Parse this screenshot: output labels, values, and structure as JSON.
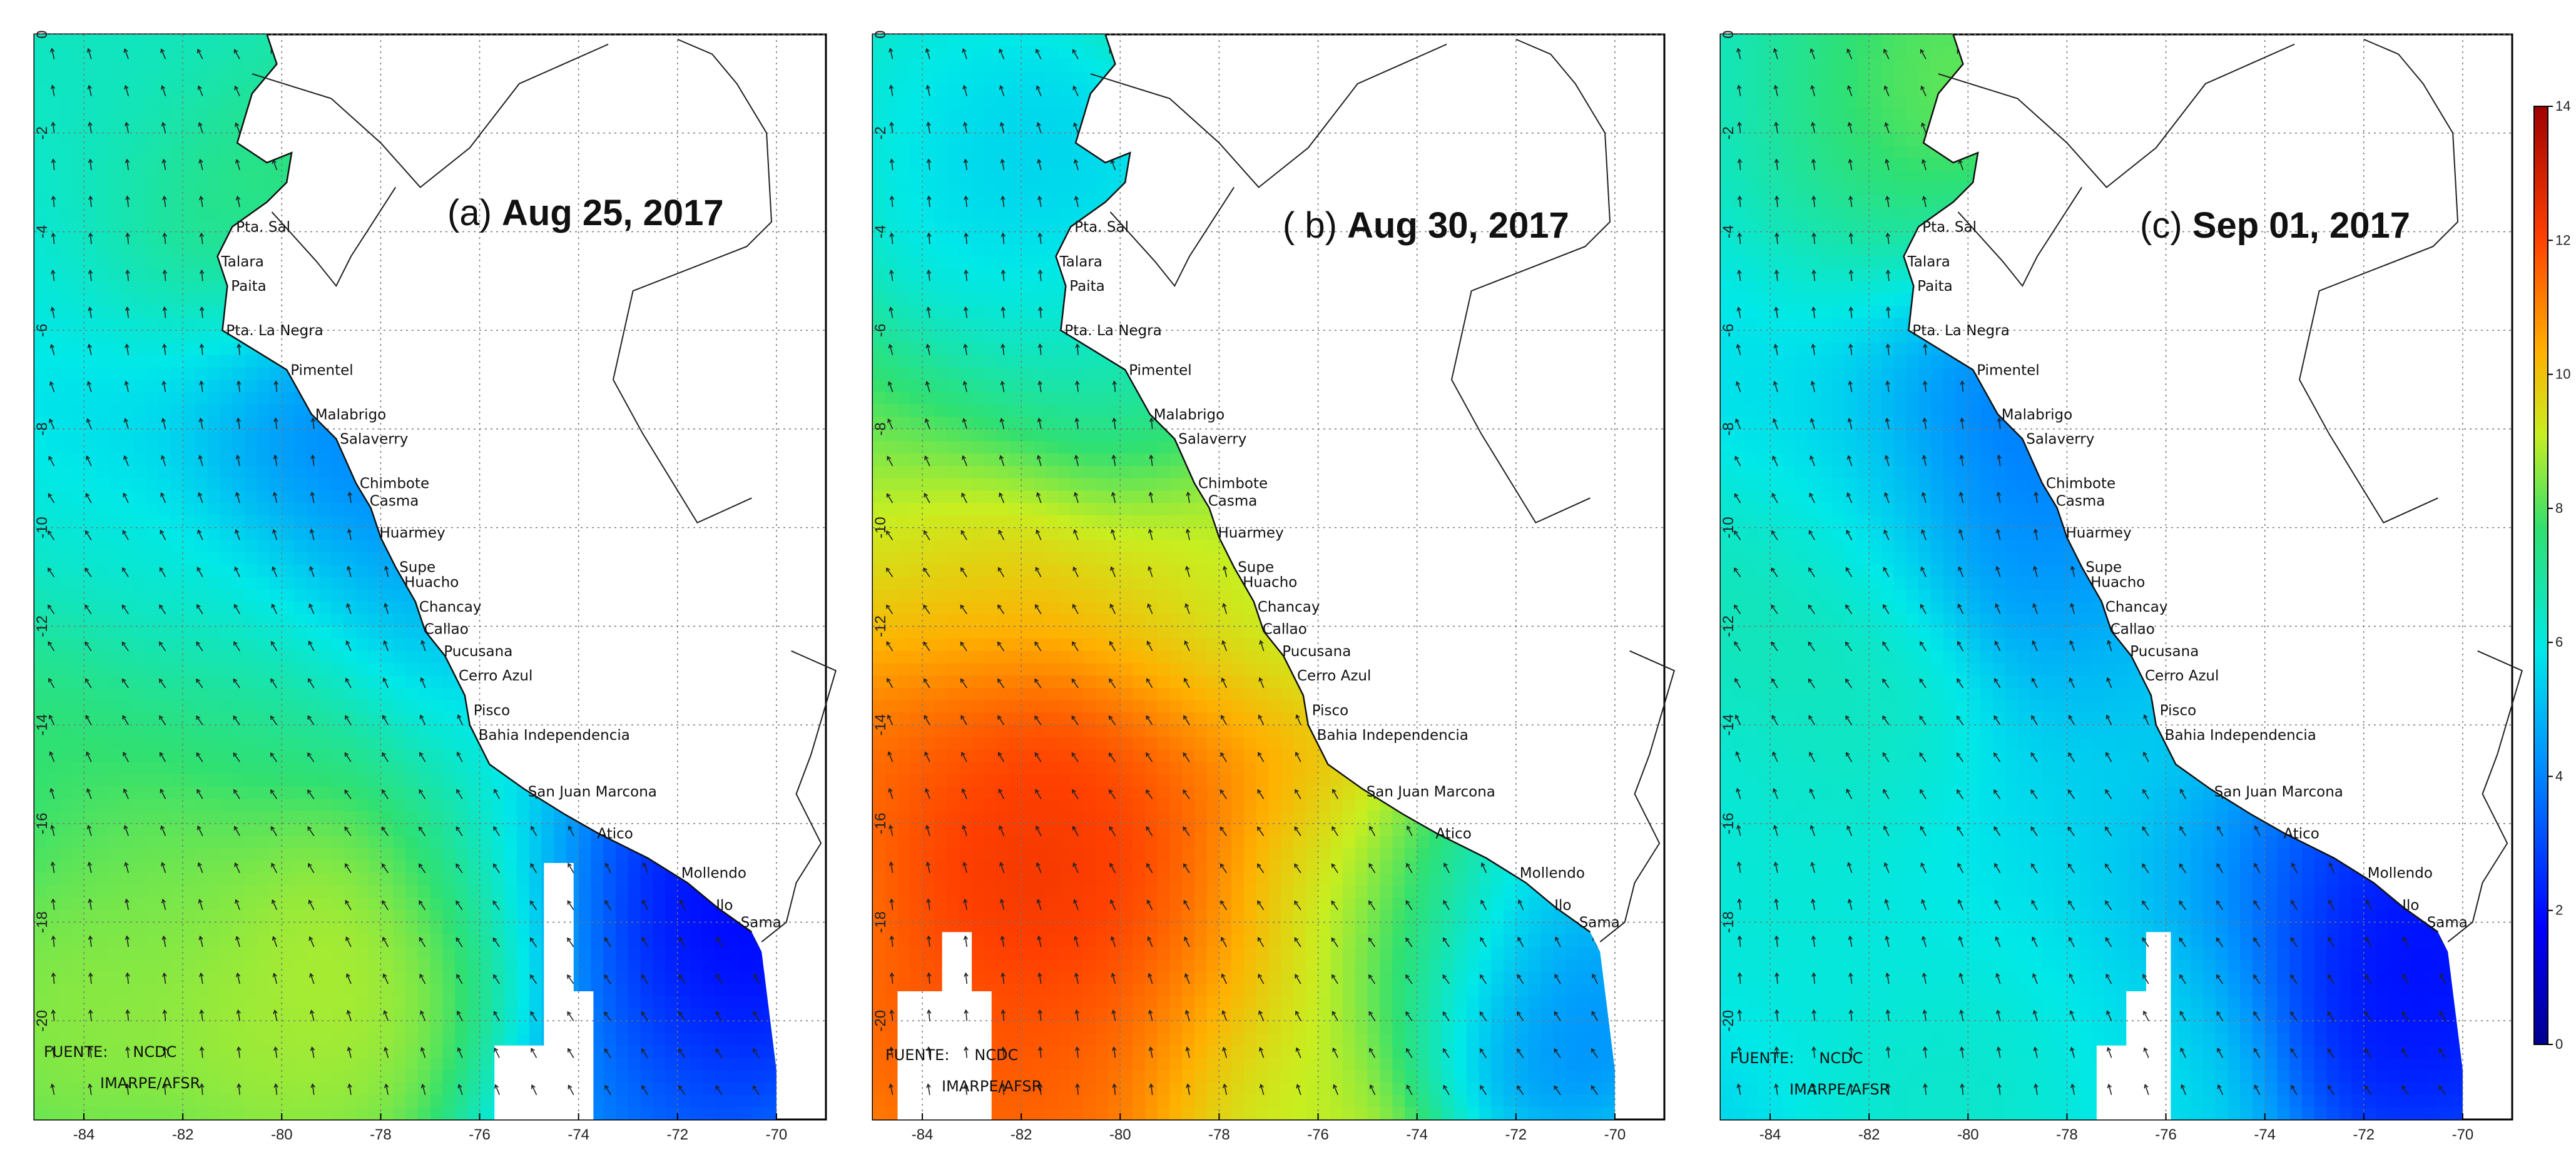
{
  "panels": [
    {
      "id": "a",
      "label": "(a)",
      "date": "Aug 25, 2017",
      "field": "a"
    },
    {
      "id": "b",
      "label": "( b)",
      "date": "Aug 30, 2017",
      "field": "b"
    },
    {
      "id": "c",
      "label": "(c)",
      "date": "Sep 01, 2017",
      "field": "c"
    }
  ],
  "map": {
    "lon_range": [
      -85,
      -69
    ],
    "lat_range": [
      -22,
      0
    ],
    "lon_ticks": [
      -84,
      -82,
      -80,
      -78,
      -76,
      -74,
      -72,
      -70
    ],
    "lat_ticks": [
      0,
      -2,
      -4,
      -6,
      -8,
      -10,
      -12,
      -14,
      -16,
      -18,
      -20
    ],
    "source_label": "FUENTE:",
    "source_org": "NCDC",
    "source_credit": "IMARPE/AFSR",
    "places": [
      {
        "name": "Pta. Sal",
        "lon": -81.0,
        "lat": -3.9
      },
      {
        "name": "Talara",
        "lon": -81.3,
        "lat": -4.6
      },
      {
        "name": "Paita",
        "lon": -81.1,
        "lat": -5.1
      },
      {
        "name": "Pta. La Negra",
        "lon": -81.2,
        "lat": -6.0
      },
      {
        "name": "Pimentel",
        "lon": -79.9,
        "lat": -6.8
      },
      {
        "name": "Malabrigo",
        "lon": -79.4,
        "lat": -7.7
      },
      {
        "name": "Salaverry",
        "lon": -78.9,
        "lat": -8.2
      },
      {
        "name": "Chimbote",
        "lon": -78.5,
        "lat": -9.1
      },
      {
        "name": "Casma",
        "lon": -78.3,
        "lat": -9.45
      },
      {
        "name": "Huarmey",
        "lon": -78.1,
        "lat": -10.1
      },
      {
        "name": "Supe",
        "lon": -77.7,
        "lat": -10.8
      },
      {
        "name": "Huacho",
        "lon": -77.6,
        "lat": -11.1
      },
      {
        "name": "Chancay",
        "lon": -77.3,
        "lat": -11.6
      },
      {
        "name": "Callao",
        "lon": -77.2,
        "lat": -12.05
      },
      {
        "name": "Pucusana",
        "lon": -76.8,
        "lat": -12.5
      },
      {
        "name": "Cerro Azul",
        "lon": -76.5,
        "lat": -13.0
      },
      {
        "name": "Pisco",
        "lon": -76.2,
        "lat": -13.7
      },
      {
        "name": "Bahia Independencia",
        "lon": -76.1,
        "lat": -14.2
      },
      {
        "name": "San Juan Marcona",
        "lon": -75.1,
        "lat": -15.35
      },
      {
        "name": "Atico",
        "lon": -73.7,
        "lat": -16.2
      },
      {
        "name": "Mollendo",
        "lon": -72.0,
        "lat": -17.0
      },
      {
        "name": "Ilo",
        "lon": -71.3,
        "lat": -17.65
      },
      {
        "name": "Sama",
        "lon": -70.8,
        "lat": -18.0
      }
    ]
  },
  "colorbar": {
    "min": 0,
    "max": 14,
    "ticks": [
      0,
      2,
      4,
      6,
      8,
      10,
      12,
      14
    ]
  }
}
